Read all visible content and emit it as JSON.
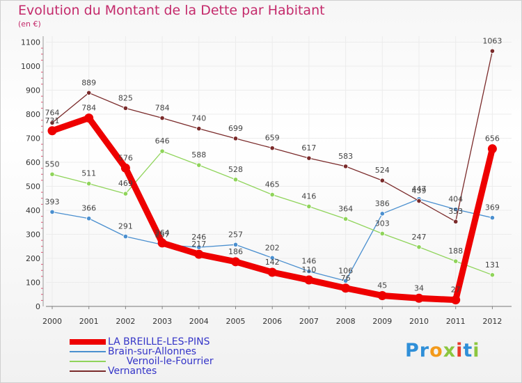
{
  "title": "Evolution du Montant de la Dette par Habitant",
  "unit": "(en €)",
  "logo": {
    "text": "Proxiti",
    "letter_colors": [
      "#2f8fd8",
      "#2f8fd8",
      "#f39a1b",
      "#8cc63f",
      "#e8392a",
      "#2f8fd8",
      "#8cc63f"
    ]
  },
  "colors": {
    "background": "#ffffff",
    "grid": "#ececec",
    "title": "#c42a6b",
    "axis_marks": "#e05070"
  },
  "chart_data": {
    "type": "line",
    "title": "Evolution du Montant de la Dette par Habitant",
    "ylabel": "(en €)",
    "categories": [
      "2000",
      "2001",
      "2002",
      "2003",
      "2004",
      "2005",
      "2006",
      "2007",
      "2008",
      "2009",
      "2010",
      "2011",
      "2012"
    ],
    "ylim": [
      0,
      1100
    ],
    "yticks": [
      0,
      100,
      200,
      300,
      400,
      500,
      600,
      700,
      800,
      900,
      1000,
      1100
    ],
    "grid": true,
    "legend_position": "bottom-left",
    "series": [
      {
        "name": "LA BREILLE-LES-PINS",
        "color": "#ee0000",
        "values": [
          731,
          784,
          576,
          264,
          217,
          186,
          142,
          110,
          76,
          45,
          34,
          27,
          656
        ],
        "labels": [
          "731",
          "784",
          "576",
          "264",
          "217",
          "186",
          "142",
          "110",
          "76",
          "45",
          "34",
          "27",
          "656"
        ]
      },
      {
        "name": "Brain-sur-Allonnes",
        "color": "#4a8fcf",
        "values": [
          393,
          366,
          291,
          257,
          246,
          257,
          202,
          146,
          106,
          386,
          447,
          404,
          369
        ],
        "labels": [
          "393",
          "366",
          "291",
          "257",
          "246",
          "257",
          "202",
          "146",
          "106",
          "386",
          "447",
          "404",
          "369"
        ]
      },
      {
        "name": "Vernoil-le-Fourrier",
        "color": "#8fd45a",
        "values": [
          550,
          511,
          469,
          646,
          588,
          528,
          465,
          416,
          364,
          303,
          247,
          188,
          131
        ],
        "labels": [
          "550",
          "511",
          "469",
          "646",
          "588",
          "528",
          "465",
          "416",
          "364",
          "303",
          "247",
          "188",
          "131"
        ]
      },
      {
        "name": "Vernantes",
        "color": "#7a2a2a",
        "values": [
          764,
          889,
          825,
          784,
          740,
          699,
          659,
          617,
          583,
          524,
          439,
          353,
          1063
        ],
        "labels": [
          "764",
          "889",
          "825",
          "784",
          "740",
          "699",
          "659",
          "617",
          "583",
          "524",
          "439",
          "353",
          "1063"
        ]
      }
    ]
  },
  "legend": [
    {
      "label": "LA BREILLE-LES-PINS",
      "color": "#ee0000",
      "text_color": "#3434c8"
    },
    {
      "label": "Brain-sur-Allonnes",
      "color": "#4a8fcf",
      "text_color": "#3434c8"
    },
    {
      "label": "      Vernoil-le-Fourrier",
      "color": "#8fd45a",
      "text_color": "#3434c8"
    },
    {
      "label": "Vernantes",
      "color": "#7a2a2a",
      "text_color": "#3434c8"
    }
  ]
}
